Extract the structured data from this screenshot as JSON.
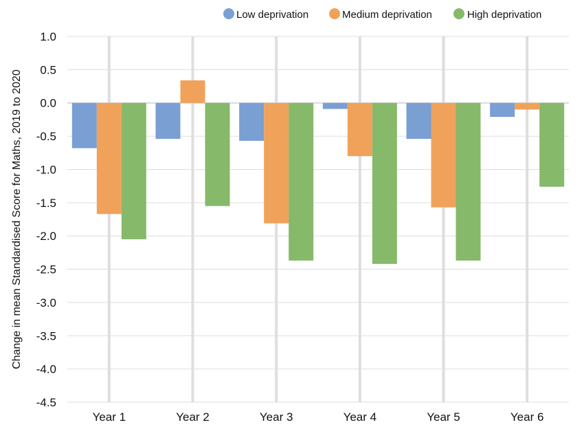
{
  "chart_data": {
    "type": "bar",
    "categories": [
      "Year 1",
      "Year 2",
      "Year 3",
      "Year 4",
      "Year 5",
      "Year 6"
    ],
    "series": [
      {
        "name": "Low deprivation",
        "color": "#7A9FD3",
        "values": [
          -0.68,
          -0.54,
          -0.57,
          -0.09,
          -0.54,
          -0.21
        ]
      },
      {
        "name": "Medium deprivation",
        "color": "#F0A25B",
        "values": [
          -1.67,
          0.34,
          -1.81,
          -0.8,
          -1.57,
          -0.1
        ]
      },
      {
        "name": "High deprivation",
        "color": "#86B96A",
        "values": [
          -2.05,
          -1.55,
          -2.37,
          -2.42,
          -2.37,
          -1.26
        ]
      }
    ],
    "title": "",
    "xlabel": "",
    "ylabel": "Change in mean Standardised Score for Maths, 2019 to 2020",
    "ylim": [
      -4.5,
      1.0
    ],
    "yticks": [
      "1.0",
      "0.5",
      "0.0",
      "-0.5",
      "-1.0",
      "-1.5",
      "-2.0",
      "-2.5",
      "-3.0",
      "-3.5",
      "-4.0",
      "-4.5"
    ],
    "grid": "horizontal and vertical",
    "legend_position": "top-right"
  }
}
